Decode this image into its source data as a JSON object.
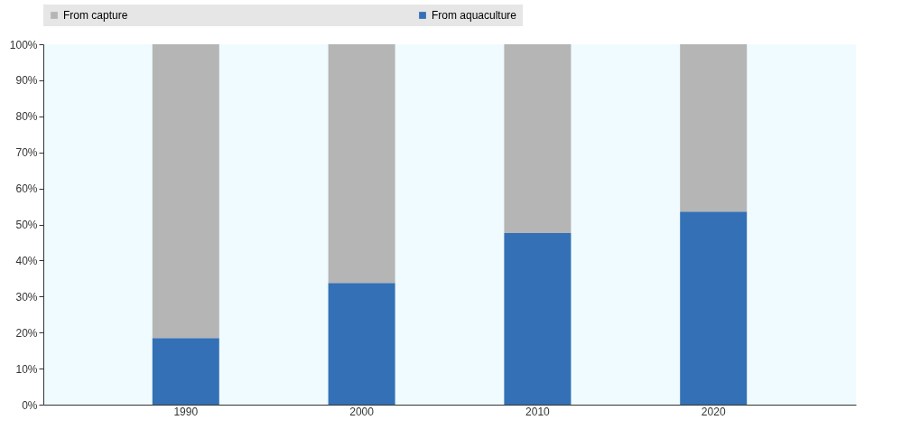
{
  "chart_data": {
    "type": "bar",
    "stacked": true,
    "categories": [
      "1990",
      "2000",
      "2010",
      "2020"
    ],
    "series": [
      {
        "name": "From aquaculture",
        "color": "#3470b5",
        "values": [
          18.5,
          33.8,
          47.6,
          53.6
        ]
      },
      {
        "name": "From capture",
        "color": "#b5b5b5",
        "values": [
          81.5,
          66.2,
          52.4,
          46.4
        ]
      }
    ],
    "ylim": [
      0,
      100
    ],
    "yticks": [
      {
        "value": 0,
        "label": "0%"
      },
      {
        "value": 10,
        "label": "10%"
      },
      {
        "value": 20,
        "label": "20%"
      },
      {
        "value": 30,
        "label": "30%"
      },
      {
        "value": 40,
        "label": "40%"
      },
      {
        "value": 50,
        "label": "50%"
      },
      {
        "value": 60,
        "label": "60%"
      },
      {
        "value": 70,
        "label": "70%"
      },
      {
        "value": 80,
        "label": "80%"
      },
      {
        "value": 90,
        "label": "90%"
      },
      {
        "value": 100,
        "label": "100%"
      }
    ],
    "legend": "top",
    "grid": false
  }
}
